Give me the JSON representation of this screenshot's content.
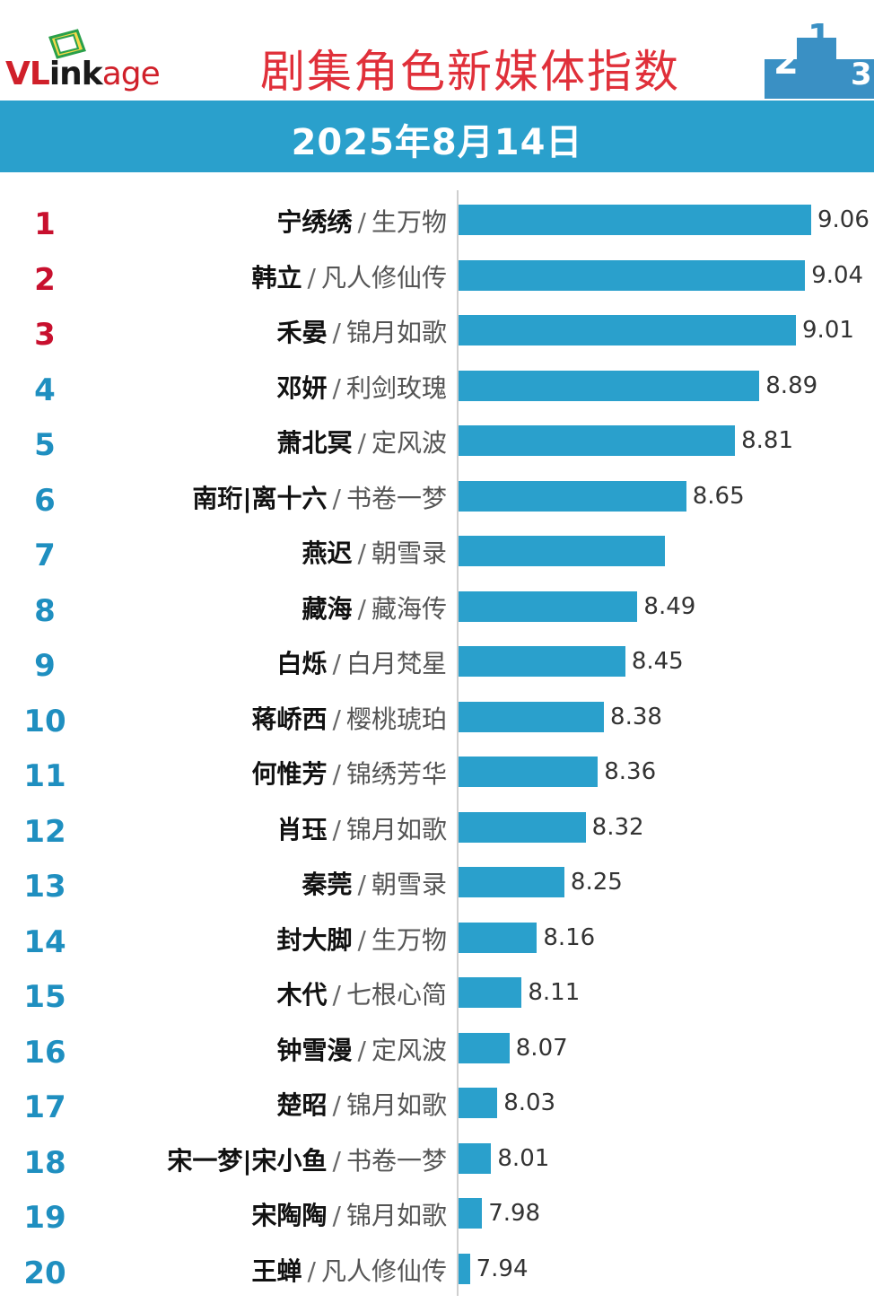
{
  "header": {
    "logo": "VLinkage",
    "title": "剧集角色新媒体指数",
    "date": "2025年8月14日"
  },
  "colors": {
    "brand_red": "#d0202a",
    "title_red": "#e0303a",
    "band_blue": "#2aa0cc",
    "bar_blue": "#2aa0cc",
    "rank_top3": "#c8102e",
    "rank_rest": "#1f8fc0"
  },
  "chart_data": {
    "type": "bar",
    "orientation": "horizontal",
    "title": "剧集角色新媒体指数",
    "subtitle": "2025年8月14日",
    "xlim": [
      5.8,
      9.4
    ],
    "ranks": [
      "1",
      "2",
      "3",
      "4",
      "5",
      "6",
      "7",
      "8",
      "9",
      "10",
      "11",
      "12",
      "13",
      "14",
      "15",
      "16",
      "17",
      "18",
      "19",
      "20"
    ],
    "roles": [
      "宁绣绣",
      "韩立",
      "禾晏",
      "邓妍",
      "萧北冥",
      "南珩|离十六",
      "燕迟",
      "藏海",
      "白烁",
      "蒋峤西",
      "何惟芳",
      "肖珏",
      "秦莞",
      "封大脚",
      "木代",
      "钟雪漫",
      "楚昭",
      "宋一梦|宋小鱼",
      "宋陶陶",
      "王蝉"
    ],
    "dramas": [
      "生万物",
      "凡人修仙传",
      "锦月如歌",
      "利剑玫瑰",
      "定风波",
      "书卷一梦",
      "朝雪录",
      "藏海传",
      "白月梵星",
      "樱桃琥珀",
      "锦绣芳华",
      "锦月如歌",
      "朝雪录",
      "生万物",
      "七根心简",
      "定风波",
      "锦月如歌",
      "书卷一梦",
      "锦月如歌",
      "凡人修仙传"
    ],
    "values": [
      9.06,
      9.04,
      9.01,
      8.89,
      8.81,
      8.65,
      8.58,
      8.49,
      8.45,
      8.38,
      8.36,
      8.32,
      8.25,
      8.16,
      8.11,
      8.07,
      8.03,
      8.01,
      7.98,
      7.94
    ],
    "value_labels": [
      "9.06",
      "9.04",
      "9.01",
      "8.89",
      "8.81",
      "8.65",
      "",
      "8.49",
      "8.45",
      "8.38",
      "8.36",
      "8.32",
      "8.25",
      "8.16",
      "8.11",
      "8.07",
      "8.03",
      "8.01",
      "7.98",
      "7.94"
    ],
    "grid": false,
    "legend": "none"
  }
}
